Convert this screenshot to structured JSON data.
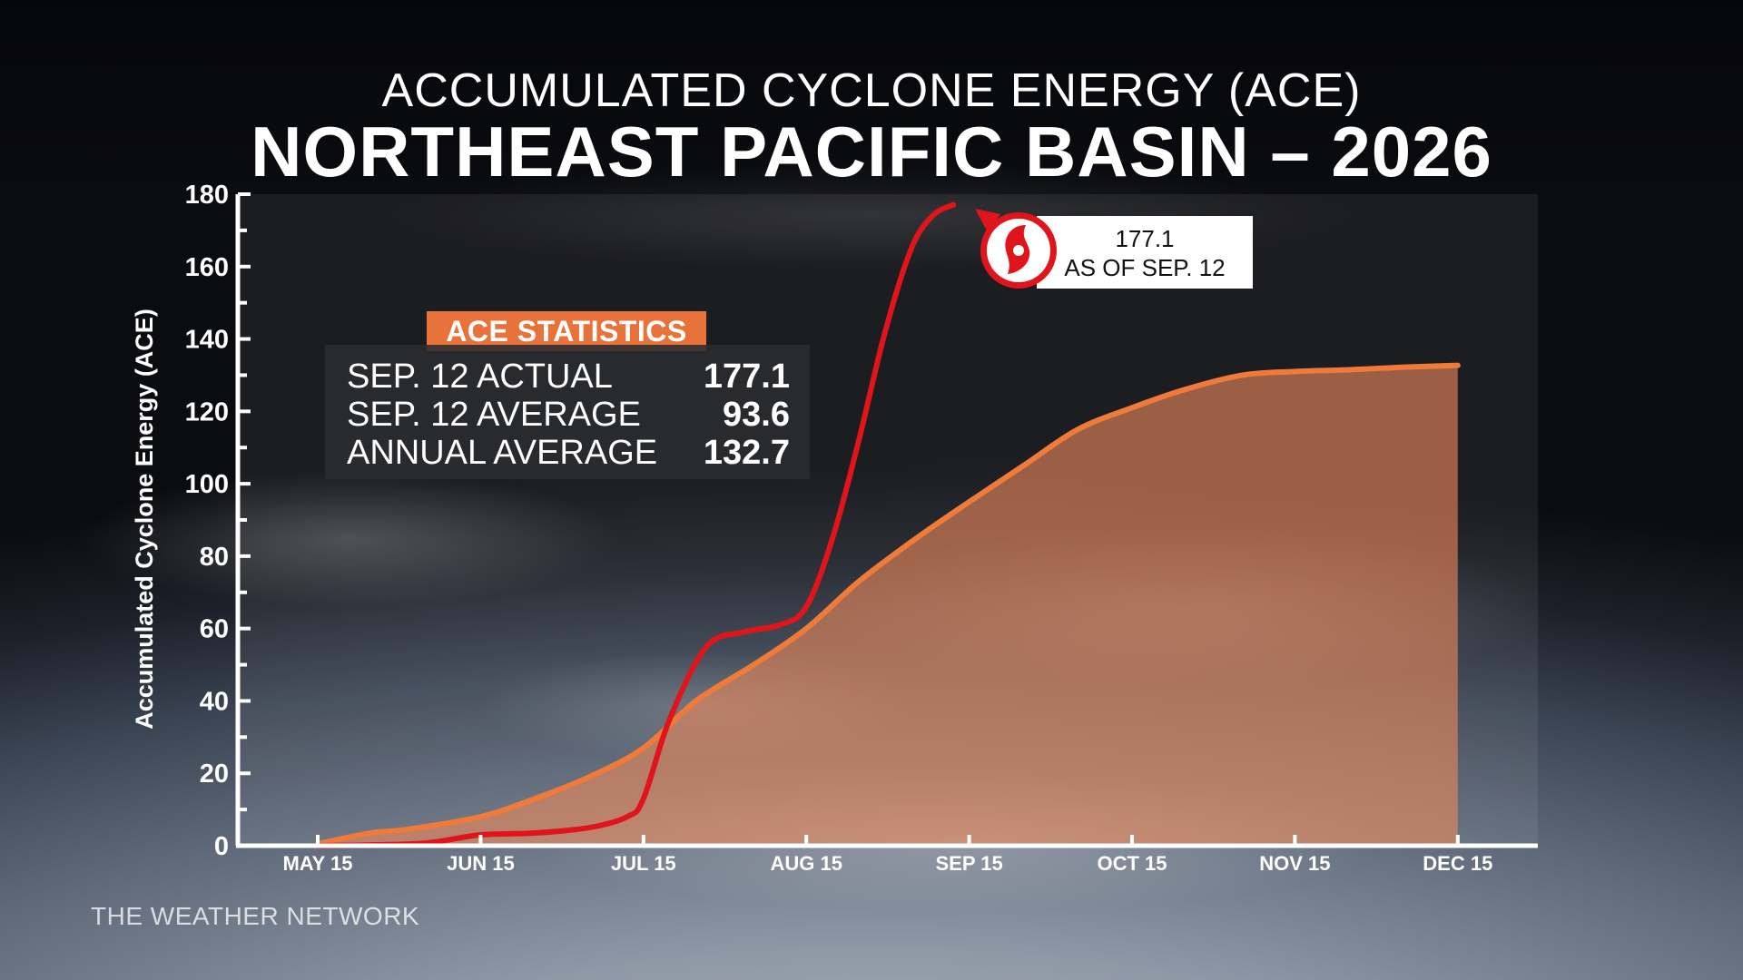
{
  "title_line1": "ACCUMULATED CYCLONE ENERGY (ACE)",
  "title_line2": "NORTHEAST PACIFIC BASIN – 2026",
  "brand": "THE WEATHER NETWORK",
  "stats": {
    "header": "ACE STATISTICS",
    "rows": [
      {
        "label": "SEP. 12 ACTUAL",
        "value": "177.1"
      },
      {
        "label": "SEP. 12 AVERAGE",
        "value": "93.6"
      },
      {
        "label": "ANNUAL AVERAGE",
        "value": "132.7"
      }
    ]
  },
  "callout": {
    "value": "177.1",
    "date": "AS OF SEP. 12",
    "icon": "hurricane-icon"
  },
  "colors": {
    "actual_line": "#e0151b",
    "average_line": "#f07a3a",
    "average_fill": "#e8875a",
    "stats_header": "#e8733a"
  },
  "chart_data": {
    "type": "line",
    "ylabel": "Accumulated Cyclone Energy (ACE)",
    "xlabel": "",
    "ylim": [
      0,
      180
    ],
    "yticks": [
      0,
      20,
      40,
      60,
      80,
      100,
      120,
      140,
      160,
      180
    ],
    "x_tick_labels": [
      "MAY 15",
      "JUN 15",
      "JUL 15",
      "AUG 15",
      "SEP 15",
      "OCT 15",
      "NOV 15",
      "DEC 15"
    ],
    "series": [
      {
        "name": "2026",
        "style": "line",
        "x": [
          "May 15",
          "May 25",
          "Jun 5",
          "Jun 15",
          "Jun 25",
          "Jul 5",
          "Jul 12",
          "Jul 15",
          "Jul 20",
          "Jul 27",
          "Aug 3",
          "Aug 10",
          "Aug 15",
          "Aug 20",
          "Aug 25",
          "Aug 30",
          "Sep 4",
          "Sep 8",
          "Sep 12"
        ],
        "values": [
          0,
          0.2,
          0.8,
          3,
          3.5,
          5,
          8,
          13,
          35,
          55,
          59,
          61,
          66,
          85,
          112,
          142,
          165,
          174,
          177.1
        ]
      },
      {
        "name": "Average",
        "style": "area",
        "x": [
          "May 15",
          "May 25",
          "Jun 1",
          "Jun 15",
          "Jun 25",
          "Jul 5",
          "Jul 15",
          "Jul 25",
          "Aug 5",
          "Aug 15",
          "Aug 25",
          "Sep 5",
          "Sep 15",
          "Sep 25",
          "Oct 5",
          "Oct 15",
          "Oct 25",
          "Nov 5",
          "Nov 15",
          "Nov 25",
          "Dec 5",
          "Dec 15"
        ],
        "values": [
          0.5,
          3.5,
          4.5,
          8,
          13,
          19,
          27,
          40,
          50,
          60,
          73,
          85,
          95,
          105,
          115,
          121,
          126,
          130,
          131,
          131.5,
          132.2,
          132.7
        ]
      }
    ]
  }
}
